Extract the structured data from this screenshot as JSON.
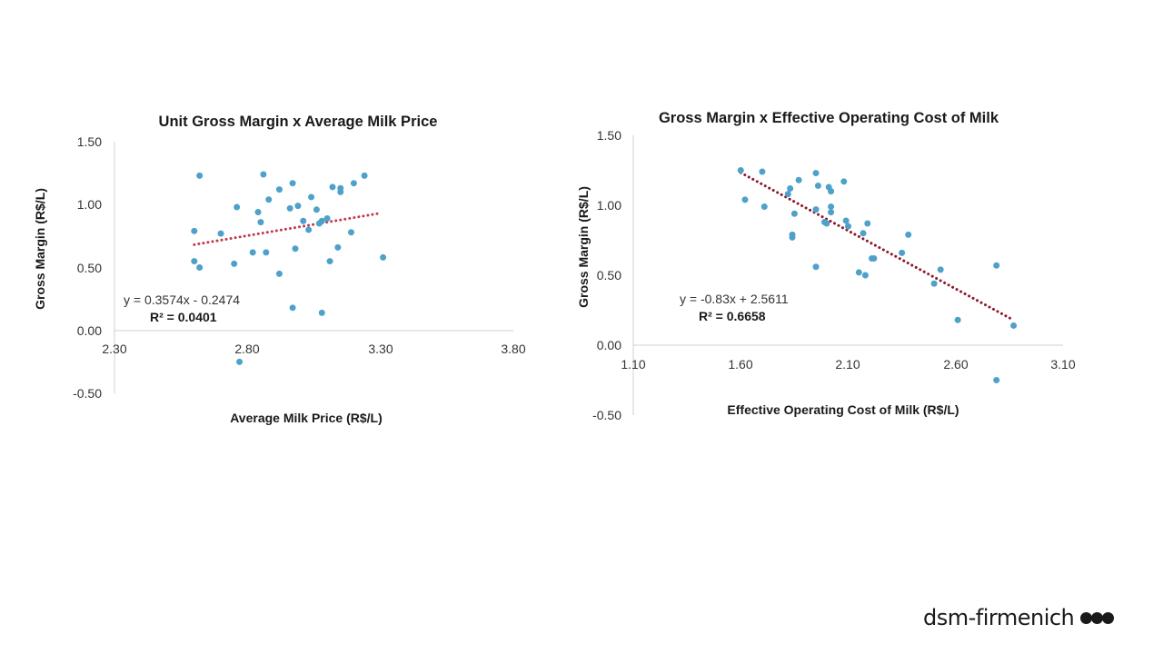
{
  "chart_data": [
    {
      "type": "scatter",
      "title": "Unit Gross Margin x Average Milk Price",
      "xlabel": "Average Milk Price (R$/L)",
      "ylabel": "Gross Margin (R$/L)",
      "xlim": [
        2.3,
        3.8
      ],
      "ylim": [
        -0.5,
        1.5
      ],
      "x_ticks": [
        "2.30",
        "2.80",
        "3.30",
        "3.80"
      ],
      "y_ticks": [
        "1.50",
        "1.00",
        "0.50",
        "0.00",
        "-0.50"
      ],
      "point_color": "#4ea1c9",
      "trendline": {
        "color": "#c0394b",
        "slope": 0.3574,
        "intercept": -0.2474,
        "x_range": [
          2.6,
          3.3
        ]
      },
      "equation": "y = 0.3574x - 0.2474",
      "r2": "R² = 0.0401",
      "points": [
        [
          2.62,
          1.23
        ],
        [
          2.6,
          0.79
        ],
        [
          2.6,
          0.55
        ],
        [
          2.62,
          0.5
        ],
        [
          2.7,
          0.77
        ],
        [
          2.76,
          0.98
        ],
        [
          2.75,
          0.53
        ],
        [
          2.82,
          0.62
        ],
        [
          2.84,
          0.94
        ],
        [
          2.85,
          0.86
        ],
        [
          2.86,
          1.24
        ],
        [
          2.87,
          0.62
        ],
        [
          2.88,
          1.04
        ],
        [
          2.92,
          1.12
        ],
        [
          2.92,
          0.45
        ],
        [
          2.96,
          0.97
        ],
        [
          2.97,
          1.17
        ],
        [
          2.98,
          0.65
        ],
        [
          2.99,
          0.99
        ],
        [
          3.01,
          0.87
        ],
        [
          3.03,
          0.8
        ],
        [
          3.04,
          1.06
        ],
        [
          3.06,
          0.96
        ],
        [
          3.07,
          0.85
        ],
        [
          3.08,
          0.87
        ],
        [
          3.1,
          0.89
        ],
        [
          3.11,
          0.55
        ],
        [
          3.12,
          1.14
        ],
        [
          3.14,
          0.66
        ],
        [
          3.15,
          1.1
        ],
        [
          3.15,
          1.13
        ],
        [
          3.19,
          0.78
        ],
        [
          3.2,
          1.17
        ],
        [
          3.24,
          1.23
        ],
        [
          3.31,
          0.58
        ],
        [
          2.97,
          0.18
        ],
        [
          3.08,
          0.14
        ],
        [
          2.77,
          -0.25
        ]
      ]
    },
    {
      "type": "scatter",
      "title": "Gross Margin x Effective Operating Cost of Milk",
      "xlabel": "Effective Operating Cost of Milk (R$/L)",
      "ylabel": "Gross Margin (R$/L)",
      "xlim": [
        1.1,
        3.1
      ],
      "ylim": [
        -0.5,
        1.5
      ],
      "x_ticks": [
        "1.10",
        "1.60",
        "2.10",
        "2.60",
        "3.10"
      ],
      "y_ticks": [
        "1.50",
        "1.00",
        "0.50",
        "0.00",
        "-0.50"
      ],
      "point_color": "#4ea1c9",
      "trendline": {
        "color": "#8b1a2b",
        "slope": -0.83,
        "intercept": 2.5611,
        "x_range": [
          1.6,
          2.87
        ]
      },
      "equation": "y = -0.83x + 2.5611",
      "r2": "R² = 0.6658",
      "points": [
        [
          1.6,
          1.25
        ],
        [
          1.62,
          1.04
        ],
        [
          1.7,
          1.24
        ],
        [
          1.71,
          0.99
        ],
        [
          1.82,
          1.08
        ],
        [
          1.83,
          1.12
        ],
        [
          1.84,
          0.79
        ],
        [
          1.84,
          0.77
        ],
        [
          1.85,
          0.94
        ],
        [
          1.87,
          1.18
        ],
        [
          1.95,
          1.23
        ],
        [
          1.95,
          0.97
        ],
        [
          1.96,
          1.14
        ],
        [
          1.95,
          0.56
        ],
        [
          1.99,
          0.88
        ],
        [
          2.0,
          0.87
        ],
        [
          2.01,
          1.13
        ],
        [
          2.02,
          1.1
        ],
        [
          2.02,
          0.99
        ],
        [
          2.02,
          0.95
        ],
        [
          2.08,
          1.17
        ],
        [
          2.09,
          0.89
        ],
        [
          2.1,
          0.85
        ],
        [
          2.15,
          0.52
        ],
        [
          2.17,
          0.8
        ],
        [
          2.18,
          0.5
        ],
        [
          2.19,
          0.87
        ],
        [
          2.21,
          0.62
        ],
        [
          2.22,
          0.62
        ],
        [
          2.35,
          0.66
        ],
        [
          2.38,
          0.79
        ],
        [
          2.5,
          0.44
        ],
        [
          2.53,
          0.54
        ],
        [
          2.61,
          0.18
        ],
        [
          2.79,
          0.57
        ],
        [
          2.87,
          0.14
        ],
        [
          2.79,
          -0.25
        ]
      ]
    }
  ],
  "brand": {
    "name": "dsm-firmenich",
    "color": "#1a1a1a"
  }
}
